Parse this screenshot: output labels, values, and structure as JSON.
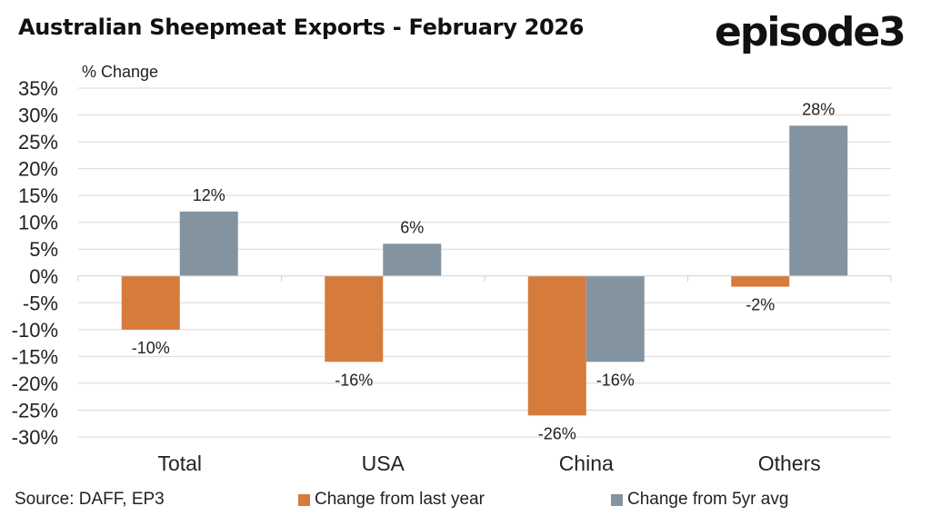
{
  "title": "Australian Sheepmeat Exports - February 2026",
  "logo": "episode3",
  "source": "Source: DAFF, EP3",
  "colors": {
    "series1": "#d57c3c",
    "series2": "#83939f",
    "grid": "#d9d9d9"
  },
  "chart_data": {
    "type": "bar",
    "ylabel": "% Change",
    "categories": [
      "Total",
      "USA",
      "China",
      "Others"
    ],
    "ylim": [
      -30,
      35
    ],
    "yticks": [
      35,
      30,
      25,
      20,
      15,
      10,
      5,
      0,
      -5,
      -10,
      -15,
      -20,
      -25,
      -30
    ],
    "ytick_labels": [
      "35%",
      "30%",
      "25%",
      "20%",
      "15%",
      "10%",
      "5%",
      "0%",
      "-5%",
      "-10%",
      "-15%",
      "-20%",
      "-25%",
      "-30%"
    ],
    "grid": true,
    "legend_position": "bottom",
    "series": [
      {
        "name": "Change from last year",
        "values": [
          -10,
          -16,
          -26,
          -2
        ],
        "labels": [
          "-10%",
          "-16%",
          "-26%",
          "-2%"
        ]
      },
      {
        "name": "Change from 5yr avg",
        "values": [
          12,
          6,
          -16,
          28
        ],
        "labels": [
          "12%",
          "6%",
          "-16%",
          "28%"
        ]
      }
    ]
  }
}
